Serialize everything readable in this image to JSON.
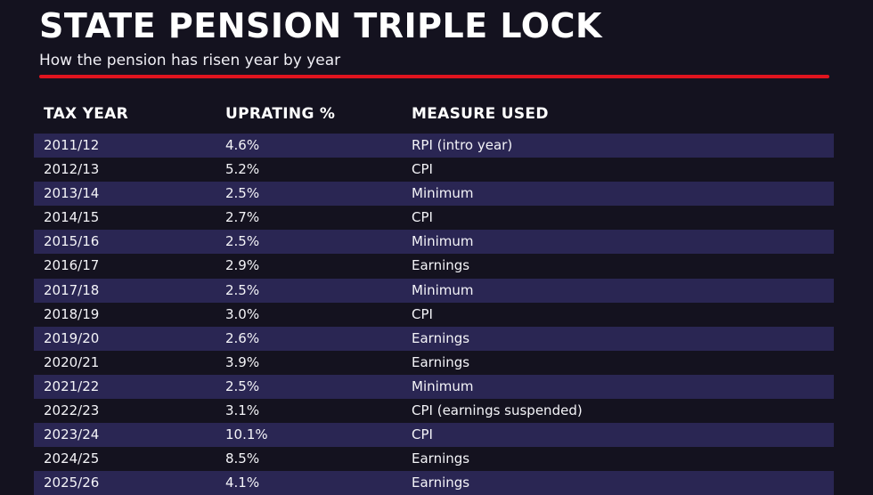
{
  "header": {
    "title": "STATE PENSION TRIPLE LOCK",
    "subtitle": "How the pension has risen year by year"
  },
  "colors": {
    "background": "#14121f",
    "stripe": "#2a2653",
    "rule": "#e0141e"
  },
  "chart_data": {
    "type": "table",
    "title": "STATE PENSION TRIPLE LOCK",
    "subtitle": "How the pension has risen year by year",
    "columns": [
      "TAX YEAR",
      "UPRATING %",
      "MEASURE USED"
    ],
    "rows": [
      [
        "2011/12",
        "4.6%",
        "RPI (intro year)"
      ],
      [
        "2012/13",
        "5.2%",
        "CPI"
      ],
      [
        "2013/14",
        "2.5%",
        "Minimum"
      ],
      [
        "2014/15",
        "2.7%",
        "CPI"
      ],
      [
        "2015/16",
        "2.5%",
        "Minimum"
      ],
      [
        "2016/17",
        "2.9%",
        "Earnings"
      ],
      [
        "2017/18",
        "2.5%",
        "Minimum"
      ],
      [
        "2018/19",
        "3.0%",
        "CPI"
      ],
      [
        "2019/20",
        "2.6%",
        "Earnings"
      ],
      [
        "2020/21",
        "3.9%",
        "Earnings"
      ],
      [
        "2021/22",
        "2.5%",
        "Minimum"
      ],
      [
        "2022/23",
        "3.1%",
        "CPI (earnings suspended)"
      ],
      [
        "2023/24",
        "10.1%",
        "CPI"
      ],
      [
        "2024/25",
        "8.5%",
        "Earnings"
      ],
      [
        "2025/26",
        "4.1%",
        "Earnings"
      ]
    ]
  }
}
